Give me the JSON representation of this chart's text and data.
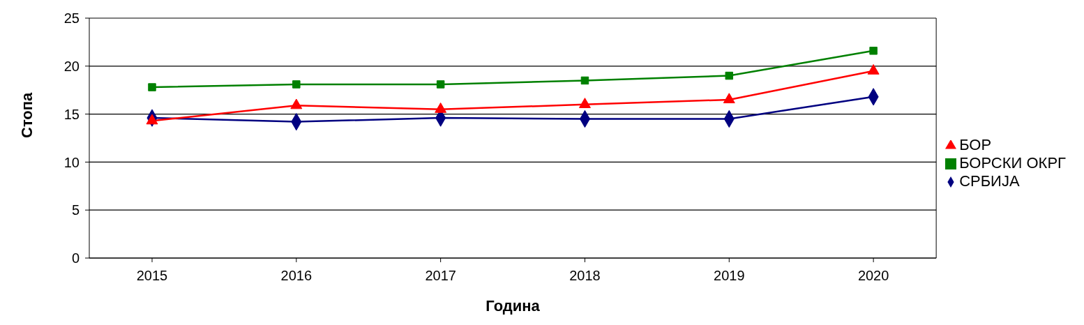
{
  "chart_data": {
    "type": "line",
    "xlabel": "Година",
    "ylabel": "Стопа",
    "categories": [
      "2015",
      "2016",
      "2017",
      "2018",
      "2019",
      "2020"
    ],
    "series": [
      {
        "name": "СРБИЈА",
        "color": "#000080",
        "marker": "diamond",
        "values": [
          14.6,
          14.2,
          14.6,
          14.5,
          14.5,
          16.8
        ]
      },
      {
        "name": "БОРСКИ ОКРГ",
        "color": "#008000",
        "marker": "square",
        "values": [
          17.8,
          18.1,
          18.1,
          18.5,
          19.0,
          21.6
        ]
      },
      {
        "name": "БОР",
        "color": "#ff0000",
        "marker": "triangle",
        "values": [
          14.3,
          15.9,
          15.5,
          16.0,
          16.5,
          19.5
        ]
      }
    ],
    "ylim": [
      0,
      25
    ],
    "yticks": [
      0,
      5,
      10,
      15,
      20,
      25
    ],
    "grid": "y",
    "legend": "right"
  }
}
